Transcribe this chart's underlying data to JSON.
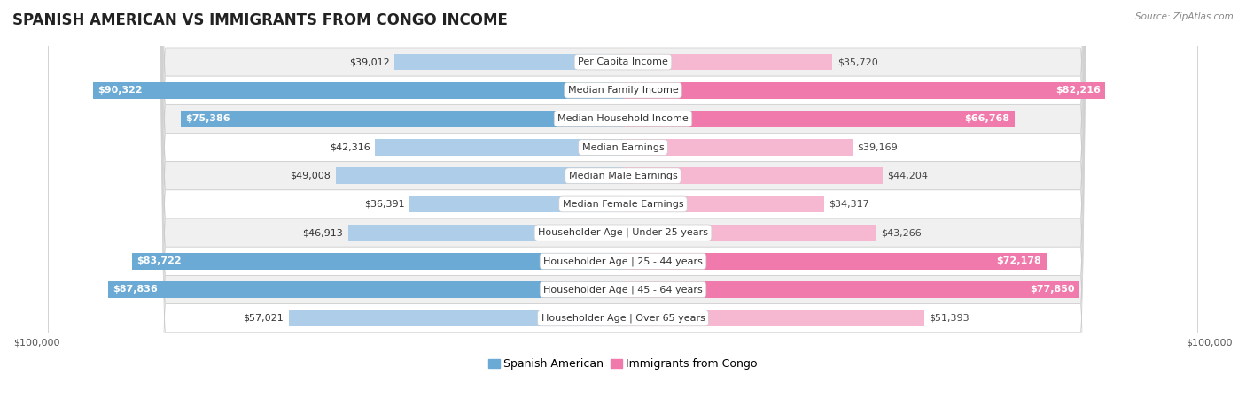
{
  "title": "SPANISH AMERICAN VS IMMIGRANTS FROM CONGO INCOME",
  "source": "Source: ZipAtlas.com",
  "categories": [
    "Per Capita Income",
    "Median Family Income",
    "Median Household Income",
    "Median Earnings",
    "Median Male Earnings",
    "Median Female Earnings",
    "Householder Age | Under 25 years",
    "Householder Age | 25 - 44 years",
    "Householder Age | 45 - 64 years",
    "Householder Age | Over 65 years"
  ],
  "spanish_american": [
    39012,
    90322,
    75386,
    42316,
    49008,
    36391,
    46913,
    83722,
    87836,
    57021
  ],
  "congo": [
    35720,
    82216,
    66768,
    39169,
    44204,
    34317,
    43266,
    72178,
    77850,
    51393
  ],
  "spanish_labels": [
    "$39,012",
    "$90,322",
    "$75,386",
    "$42,316",
    "$49,008",
    "$36,391",
    "$46,913",
    "$83,722",
    "$87,836",
    "$57,021"
  ],
  "congo_labels": [
    "$35,720",
    "$82,216",
    "$66,768",
    "$39,169",
    "$44,204",
    "$34,317",
    "$43,266",
    "$72,178",
    "$77,850",
    "$51,393"
  ],
  "max_value": 100000,
  "bar_height": 0.58,
  "blue_strong": "#6aaad4",
  "blue_light": "#aecde8",
  "pink_strong": "#f07aab",
  "pink_light": "#f5b8d0",
  "bg_row": "#f0f0f0",
  "bg_alt": "#ffffff",
  "legend_blue": "#6aaad4",
  "legend_pink": "#f07aab",
  "title_fontsize": 12,
  "label_fontsize": 8,
  "category_fontsize": 8,
  "axis_fontsize": 8,
  "inside_label_threshold": 62000
}
